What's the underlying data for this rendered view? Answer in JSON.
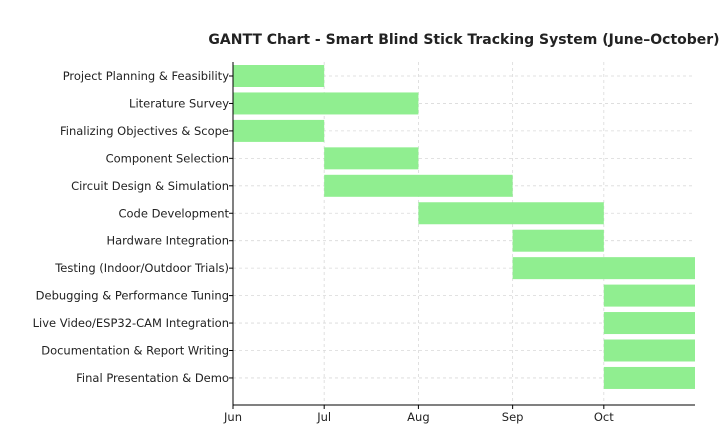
{
  "chart_data": {
    "type": "bar",
    "orientation": "horizontal-gantt",
    "title": "GANTT Chart - Smart Blind Stick Tracking System (June–October)",
    "xlabel": "",
    "ylabel": "",
    "x_ticks": [
      "Jun",
      "Jul",
      "Aug",
      "Sep",
      "Oct"
    ],
    "x_range": [
      "2025-06-01",
      "2025-10-31"
    ],
    "grid": true,
    "bar_color": "#90ee90",
    "tasks": [
      {
        "name": "Project Planning & Feasibility",
        "start": "2025-06-01",
        "end": "2025-07-01"
      },
      {
        "name": "Literature Survey",
        "start": "2025-06-01",
        "end": "2025-08-01"
      },
      {
        "name": "Finalizing Objectives & Scope",
        "start": "2025-06-01",
        "end": "2025-07-01"
      },
      {
        "name": "Component Selection",
        "start": "2025-07-01",
        "end": "2025-08-01"
      },
      {
        "name": "Circuit Design & Simulation",
        "start": "2025-07-01",
        "end": "2025-09-01"
      },
      {
        "name": "Code Development",
        "start": "2025-08-01",
        "end": "2025-10-01"
      },
      {
        "name": "Hardware Integration",
        "start": "2025-09-01",
        "end": "2025-10-01"
      },
      {
        "name": "Testing (Indoor/Outdoor Trials)",
        "start": "2025-09-01",
        "end": "2025-10-31"
      },
      {
        "name": "Debugging & Performance Tuning",
        "start": "2025-10-01",
        "end": "2025-10-31"
      },
      {
        "name": "Live Video/ESP32-CAM Integration",
        "start": "2025-10-01",
        "end": "2025-10-31"
      },
      {
        "name": "Documentation & Report Writing",
        "start": "2025-10-01",
        "end": "2025-10-31"
      },
      {
        "name": "Final Presentation & Demo",
        "start": "2025-10-01",
        "end": "2025-10-31"
      }
    ]
  }
}
